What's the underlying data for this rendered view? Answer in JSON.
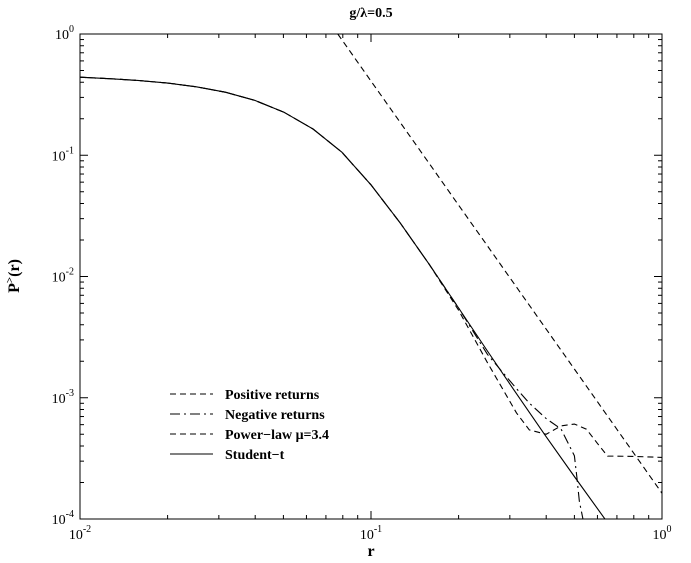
{
  "chart_data": {
    "type": "line",
    "title": "g/λ=0.5",
    "xlabel": "r",
    "ylabel": "P^>(r)",
    "x_scale": "log",
    "y_scale": "log",
    "xlim": [
      0.01,
      1
    ],
    "ylim": [
      0.0001,
      1
    ],
    "grid": false,
    "legend_position": "bottom-left",
    "x_ticks": [
      {
        "value": 0.01,
        "base": "10",
        "exp": "-2"
      },
      {
        "value": 0.1,
        "base": "10",
        "exp": "-1"
      },
      {
        "value": 1,
        "base": "10",
        "exp": "0"
      }
    ],
    "y_ticks": [
      {
        "value": 0.0001,
        "base": "10",
        "exp": "-4"
      },
      {
        "value": 0.001,
        "base": "10",
        "exp": "-3"
      },
      {
        "value": 0.01,
        "base": "10",
        "exp": "-2"
      },
      {
        "value": 0.1,
        "base": "10",
        "exp": "-1"
      },
      {
        "value": 1,
        "base": "10",
        "exp": "0"
      }
    ],
    "series": [
      {
        "name": "Positive returns",
        "style": "dashed",
        "x": [
          0.01,
          0.0126,
          0.0158,
          0.02,
          0.0251,
          0.0316,
          0.0398,
          0.0501,
          0.0631,
          0.0794,
          0.1,
          0.1259,
          0.1585,
          0.1995,
          0.2512,
          0.3162,
          0.35,
          0.4,
          0.45,
          0.5,
          0.55,
          0.6,
          0.65,
          0.7,
          0.8,
          0.9,
          1.0
        ],
        "y": [
          0.44,
          0.428,
          0.414,
          0.394,
          0.367,
          0.331,
          0.284,
          0.227,
          0.165,
          0.106,
          0.057,
          0.0277,
          0.0126,
          0.00532,
          0.00195,
          0.00075,
          0.000543,
          0.0005,
          0.000586,
          0.000607,
          0.00055,
          0.00042,
          0.00033,
          0.00033,
          0.000328,
          0.000325,
          0.000322
        ]
      },
      {
        "name": "Negative returns",
        "style": "dash-dot",
        "x": [
          0.01,
          0.0126,
          0.0158,
          0.02,
          0.0251,
          0.0316,
          0.0398,
          0.0501,
          0.0631,
          0.0794,
          0.1,
          0.1259,
          0.1585,
          0.1995,
          0.2512,
          0.3162,
          0.35,
          0.4,
          0.45,
          0.5,
          0.51,
          0.52,
          0.535
        ],
        "y": [
          0.44,
          0.428,
          0.414,
          0.394,
          0.367,
          0.331,
          0.284,
          0.227,
          0.165,
          0.106,
          0.057,
          0.0277,
          0.0126,
          0.00555,
          0.00228,
          0.00119,
          0.000903,
          0.000673,
          0.000552,
          0.000332,
          0.00022,
          0.00014,
          0.0001
        ]
      },
      {
        "name": "Power−law μ=3.4",
        "style": "dashed",
        "x": [
          0.0769,
          0.1,
          0.1259,
          0.1585,
          0.1995,
          0.2512,
          0.3162,
          0.3981,
          0.5012,
          0.631,
          0.7943,
          1.0
        ],
        "y": [
          1.0,
          0.409,
          0.187,
          0.0856,
          0.0391,
          0.0179,
          0.00818,
          0.00374,
          0.00171,
          0.000781,
          0.000357,
          0.000163
        ]
      },
      {
        "name": "Student−t",
        "style": "solid",
        "x": [
          0.01,
          0.0126,
          0.0158,
          0.02,
          0.0251,
          0.0316,
          0.0398,
          0.0501,
          0.0631,
          0.0794,
          0.1,
          0.1259,
          0.1585,
          0.1995,
          0.2512,
          0.3162,
          0.3981,
          0.5012,
          0.631,
          0.7943,
          0.82
        ],
        "y": [
          0.44,
          0.428,
          0.414,
          0.394,
          0.367,
          0.331,
          0.284,
          0.227,
          0.165,
          0.106,
          0.057,
          0.0277,
          0.0126,
          0.00555,
          0.00243,
          0.00108,
          0.000484,
          0.000222,
          0.000103,
          4.8e-05,
          0.0001
        ]
      }
    ]
  }
}
